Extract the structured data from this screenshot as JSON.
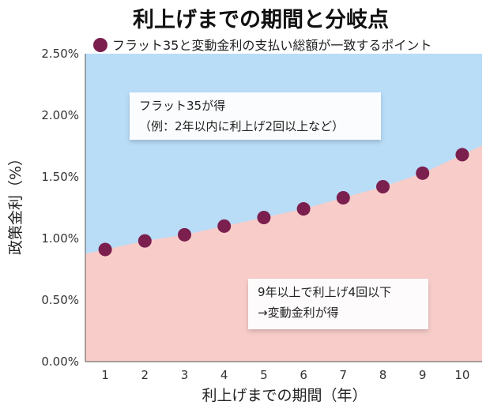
{
  "chart_data": {
    "type": "scatter",
    "title": "利上げまでの期間と分岐点",
    "legend": {
      "placement": "top",
      "label": "フラット35と変動金利の支払い総額が一致するポイント",
      "color": "#7a1f4e"
    },
    "xlabel": "利上げまでの期間（年）",
    "ylabel": "政策金利（%）",
    "x_ticks": [
      "1",
      "2",
      "3",
      "4",
      "5",
      "6",
      "7",
      "8",
      "9",
      "10"
    ],
    "xlim": [
      0.5,
      10.5
    ],
    "y_ticks": [
      "0.00%",
      "0.50%",
      "1.00%",
      "1.50%",
      "2.00%",
      "2.50%"
    ],
    "y_tick_values": [
      0,
      0.5,
      1.0,
      1.5,
      2.0,
      2.5
    ],
    "ylim": [
      0,
      2.5
    ],
    "series": [
      {
        "x": [
          1,
          2,
          3,
          4,
          5,
          6,
          7,
          8,
          9,
          10
        ],
        "y": [
          0.91,
          0.98,
          1.03,
          1.1,
          1.17,
          1.24,
          1.33,
          1.42,
          1.53,
          1.68
        ]
      }
    ],
    "regions": {
      "upper_color": "#b9dcf7",
      "lower_color": "#f8cdc9"
    },
    "annotations": [
      {
        "lines": [
          "フラット35が得",
          "（例：2年以内に利上げ2回以上など）"
        ]
      },
      {
        "lines": [
          "9年以上で利上げ4回以下",
          "→変動金利が得"
        ]
      }
    ]
  }
}
